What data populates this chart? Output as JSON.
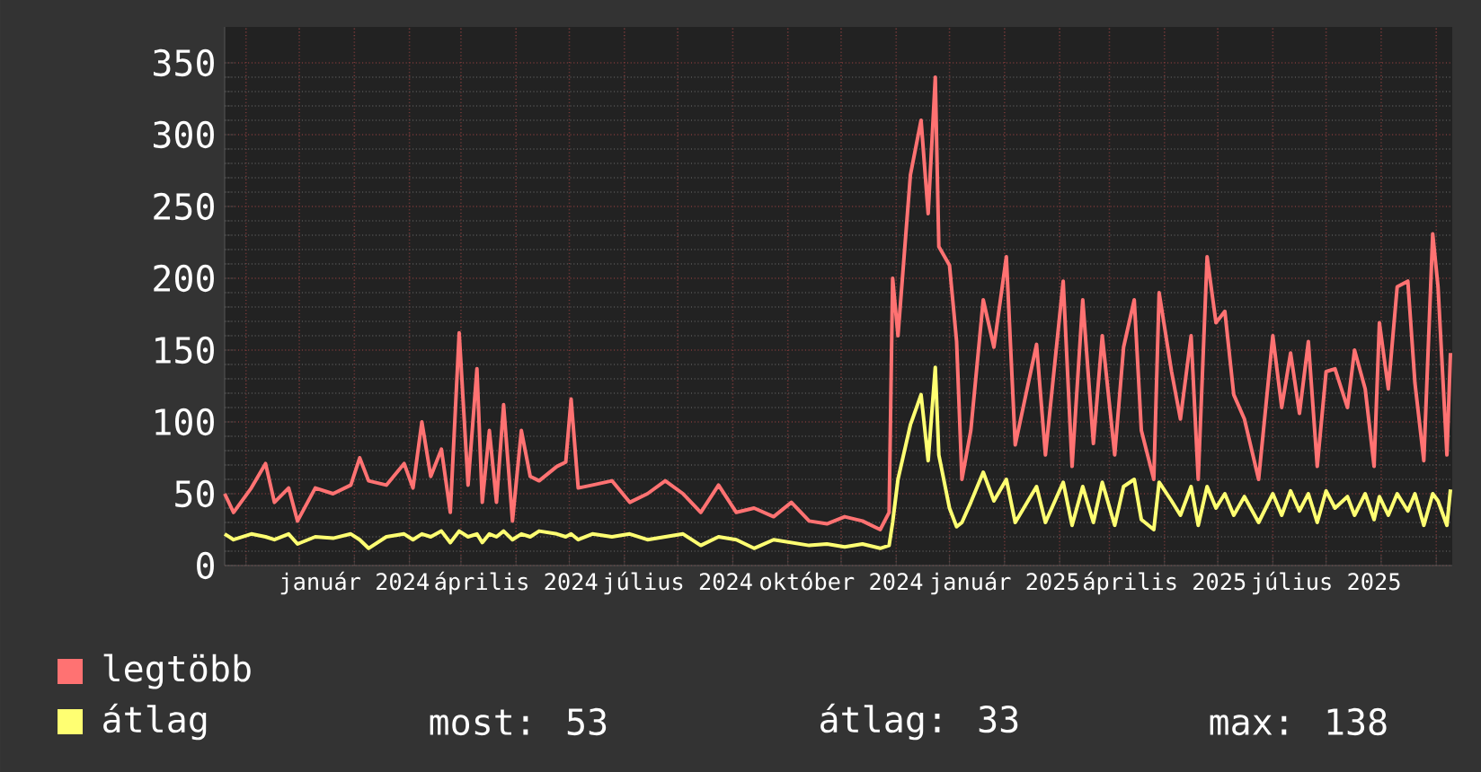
{
  "chart_data": {
    "type": "line",
    "x": [
      "2023-10-20",
      "2023-10-25",
      "2023-11-04",
      "2023-11-12",
      "2023-11-17",
      "2023-11-25",
      "2023-11-30",
      "2023-12-10",
      "2023-12-20",
      "2023-12-30",
      "2024-01-04",
      "2024-01-09",
      "2024-01-19",
      "2024-01-29",
      "2024-02-03",
      "2024-02-08",
      "2024-02-13",
      "2024-02-19",
      "2024-02-24",
      "2024-02-29",
      "2024-03-05",
      "2024-03-10",
      "2024-03-13",
      "2024-03-17",
      "2024-03-21",
      "2024-03-25",
      "2024-03-30",
      "2024-04-04",
      "2024-04-09",
      "2024-04-14",
      "2024-04-24",
      "2024-04-29",
      "2024-05-02",
      "2024-05-06",
      "2024-05-14",
      "2024-05-25",
      "2024-06-04",
      "2024-06-14",
      "2024-06-24",
      "2024-07-04",
      "2024-07-14",
      "2024-07-24",
      "2024-08-03",
      "2024-08-13",
      "2024-08-24",
      "2024-09-03",
      "2024-09-13",
      "2024-09-23",
      "2024-10-03",
      "2024-10-13",
      "2024-10-23",
      "2024-10-28",
      "2024-10-30",
      "2024-11-02",
      "2024-11-09",
      "2024-11-15",
      "2024-11-19",
      "2024-11-23",
      "2024-11-25",
      "2024-12-01",
      "2024-12-05",
      "2024-12-08",
      "2024-12-13",
      "2024-12-20",
      "2024-12-26",
      "2025-01-02",
      "2025-01-07",
      "2025-01-19",
      "2025-01-24",
      "2025-02-03",
      "2025-02-08",
      "2025-02-14",
      "2025-02-20",
      "2025-02-25",
      "2025-03-04",
      "2025-03-09",
      "2025-03-15",
      "2025-03-19",
      "2025-03-26",
      "2025-03-29",
      "2025-04-05",
      "2025-04-10",
      "2025-04-16",
      "2025-04-20",
      "2025-04-25",
      "2025-04-30",
      "2025-05-05",
      "2025-05-10",
      "2025-05-16",
      "2025-05-24",
      "2025-06-01",
      "2025-06-06",
      "2025-06-11",
      "2025-06-16",
      "2025-06-21",
      "2025-06-26",
      "2025-07-01",
      "2025-07-06",
      "2025-07-13",
      "2025-07-17",
      "2025-07-23",
      "2025-07-28",
      "2025-07-31",
      "2025-08-05",
      "2025-08-10",
      "2025-08-16",
      "2025-08-20",
      "2025-08-25",
      "2025-08-30",
      "2025-09-02",
      "2025-09-07",
      "2025-09-09"
    ],
    "series": [
      {
        "name": "legtöbb",
        "color": "#ff7272",
        "values": [
          50,
          37,
          54,
          71,
          44,
          54,
          31,
          54,
          50,
          56,
          75,
          59,
          56,
          71,
          54,
          100,
          62,
          81,
          37,
          162,
          56,
          137,
          44,
          94,
          44,
          112,
          31,
          94,
          62,
          59,
          69,
          72,
          116,
          54,
          56,
          59,
          44,
          50,
          59,
          50,
          37,
          56,
          37,
          40,
          34,
          44,
          31,
          29,
          34,
          31,
          25,
          37,
          200,
          160,
          272,
          310,
          245,
          340,
          222,
          209,
          156,
          60,
          94,
          185,
          152,
          215,
          84,
          154,
          77,
          198,
          69,
          185,
          85,
          160,
          77,
          152,
          185,
          94,
          60,
          190,
          135,
          102,
          160,
          60,
          215,
          169,
          177,
          119,
          102,
          60,
          160,
          110,
          148,
          106,
          156,
          69,
          135,
          137,
          110,
          150,
          123,
          69,
          169,
          123,
          194,
          198,
          127,
          73,
          231,
          194,
          77,
          148
        ]
      },
      {
        "name": "átlag",
        "color": "#ffff72",
        "values": [
          22,
          18,
          22,
          20,
          18,
          22,
          15,
          20,
          19,
          22,
          18,
          12,
          20,
          22,
          18,
          22,
          20,
          24,
          16,
          24,
          20,
          22,
          16,
          22,
          20,
          24,
          18,
          22,
          20,
          24,
          22,
          20,
          22,
          18,
          22,
          20,
          22,
          18,
          20,
          22,
          14,
          20,
          18,
          12,
          18,
          16,
          14,
          15,
          13,
          15,
          12,
          14,
          30,
          60,
          98,
          119,
          73,
          138,
          77,
          40,
          27,
          30,
          44,
          65,
          45,
          60,
          30,
          55,
          30,
          58,
          28,
          55,
          30,
          58,
          28,
          55,
          60,
          32,
          25,
          58,
          45,
          35,
          55,
          28,
          55,
          40,
          50,
          35,
          48,
          30,
          50,
          35,
          52,
          38,
          50,
          30,
          52,
          40,
          48,
          35,
          50,
          32,
          48,
          35,
          50,
          38,
          50,
          28,
          50,
          45,
          28,
          53
        ]
      }
    ],
    "xlim": [
      "2023-10-20",
      "2025-09-10"
    ],
    "xticks": [
      {
        "value": "2023-11-01",
        "label": null
      },
      {
        "value": "2023-12-01",
        "label": null
      },
      {
        "value": "2024-01-01",
        "label": "január 2024"
      },
      {
        "value": "2024-02-01",
        "label": null
      },
      {
        "value": "2024-03-01",
        "label": null
      },
      {
        "value": "2024-04-01",
        "label": "április 2024"
      },
      {
        "value": "2024-05-01",
        "label": null
      },
      {
        "value": "2024-06-01",
        "label": null
      },
      {
        "value": "2024-07-01",
        "label": "július 2024"
      },
      {
        "value": "2024-08-01",
        "label": null
      },
      {
        "value": "2024-09-01",
        "label": null
      },
      {
        "value": "2024-10-01",
        "label": "október 2024"
      },
      {
        "value": "2024-11-01",
        "label": null
      },
      {
        "value": "2024-12-01",
        "label": null
      },
      {
        "value": "2025-01-01",
        "label": "január 2025"
      },
      {
        "value": "2025-02-01",
        "label": null
      },
      {
        "value": "2025-03-01",
        "label": null
      },
      {
        "value": "2025-04-01",
        "label": "április 2025"
      },
      {
        "value": "2025-05-01",
        "label": null
      },
      {
        "value": "2025-06-01",
        "label": null
      },
      {
        "value": "2025-07-01",
        "label": "július 2025"
      },
      {
        "value": "2025-08-01",
        "label": null
      },
      {
        "value": "2025-09-01",
        "label": null
      }
    ],
    "ylim": [
      0,
      375
    ],
    "yticks": [
      0,
      50,
      100,
      150,
      200,
      250,
      300,
      350
    ],
    "grid": true,
    "legend": "bottom",
    "annotations": [
      "most: 53",
      "átlag: 33",
      "max: 138"
    ]
  }
}
